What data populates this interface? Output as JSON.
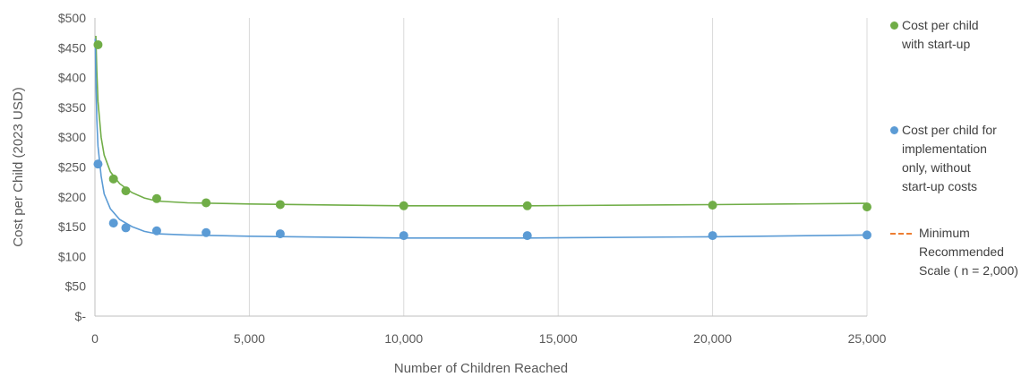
{
  "chart_data": {
    "type": "scatter",
    "title": "",
    "xlabel": "Number of Children Reached",
    "ylabel": "Cost per Child (2023 USD)",
    "xlim": [
      0,
      25000
    ],
    "ylim": [
      0,
      500
    ],
    "x_ticks": [
      0,
      5000,
      10000,
      15000,
      20000,
      25000
    ],
    "x_tick_labels": [
      "0",
      "5,000",
      "10,000",
      "15,000",
      "20,000",
      "25,000"
    ],
    "y_ticks": [
      0,
      50,
      100,
      150,
      200,
      250,
      300,
      350,
      400,
      450,
      500
    ],
    "y_tick_labels": [
      "$-",
      "$50",
      "$100",
      "$150",
      "$200",
      "$250",
      "$300",
      "$350",
      "$400",
      "$450",
      "$500"
    ],
    "grid": {
      "vertical": true,
      "horizontal": false
    },
    "legend_position": "right",
    "series": [
      {
        "name": "Cost per child\nwith start-up",
        "color": "#70ad47",
        "x": [
          100,
          600,
          1000,
          2000,
          3600,
          6000,
          10000,
          14000,
          20000,
          25000
        ],
        "y": [
          455,
          230,
          210,
          197,
          190,
          187,
          185,
          185,
          186,
          183
        ],
        "trendline": [
          [
            30,
            470
          ],
          [
            60,
            410
          ],
          [
            100,
            360
          ],
          [
            200,
            300
          ],
          [
            300,
            270
          ],
          [
            500,
            242
          ],
          [
            800,
            222
          ],
          [
            1200,
            207
          ],
          [
            1600,
            198
          ],
          [
            2000,
            193
          ],
          [
            3000,
            190
          ],
          [
            5000,
            188
          ],
          [
            8000,
            186
          ],
          [
            10000,
            185
          ],
          [
            14000,
            185
          ],
          [
            20000,
            187
          ],
          [
            25000,
            189
          ]
        ]
      },
      {
        "name": "Cost per child for\nimplementation\nonly, without\nstart-up costs",
        "color": "#5b9bd5",
        "x": [
          100,
          600,
          1000,
          2000,
          3600,
          6000,
          10000,
          14000,
          20000,
          25000
        ],
        "y": [
          255,
          156,
          148,
          143,
          140,
          138,
          135,
          135,
          135,
          136
        ],
        "trendline": [
          [
            10,
            465
          ],
          [
            30,
            400
          ],
          [
            60,
            330
          ],
          [
            100,
            285
          ],
          [
            200,
            235
          ],
          [
            300,
            205
          ],
          [
            500,
            180
          ],
          [
            800,
            162
          ],
          [
            1200,
            150
          ],
          [
            1600,
            142
          ],
          [
            2000,
            138
          ],
          [
            3000,
            136
          ],
          [
            5000,
            134
          ],
          [
            8000,
            132
          ],
          [
            10000,
            131
          ],
          [
            14000,
            131
          ],
          [
            20000,
            133
          ],
          [
            25000,
            136
          ]
        ]
      }
    ],
    "reference_line": {
      "name": "Minimum\nRecommended\nScale ( n = 2,000)",
      "color": "#ed7d31",
      "style": "dashed"
    }
  }
}
